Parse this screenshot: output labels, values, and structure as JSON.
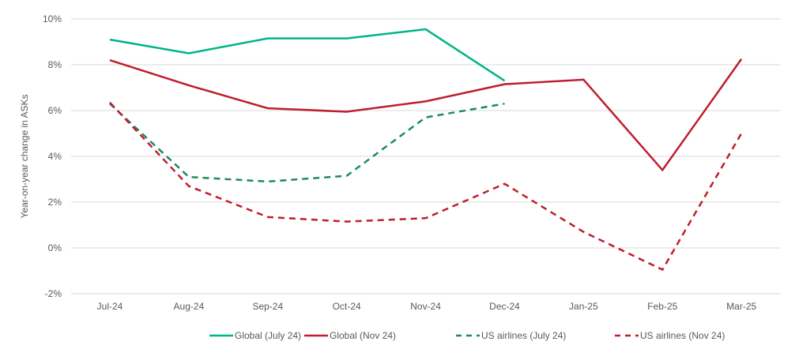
{
  "chart_data": {
    "type": "line",
    "title": "",
    "xlabel": "",
    "ylabel": "Year-on-year change in ASKs",
    "ylim": [
      -2,
      10
    ],
    "yticks": [
      -2,
      0,
      2,
      4,
      6,
      8,
      10
    ],
    "ytick_labels": [
      "-2%",
      "0%",
      "2%",
      "4%",
      "6%",
      "8%",
      "10%"
    ],
    "grid": true,
    "legend_position": "bottom",
    "categories": [
      "Jul-24",
      "Aug-24",
      "Sep-24",
      "Oct-24",
      "Nov-24",
      "Dec-24",
      "Jan-25",
      "Feb-25",
      "Mar-25"
    ],
    "series": [
      {
        "name": "Global (July 24)",
        "color": "#00B388",
        "dashed": false,
        "values": [
          9.1,
          8.5,
          9.15,
          9.15,
          9.55,
          7.3,
          null,
          null,
          null
        ]
      },
      {
        "name": "Global (Nov 24)",
        "color": "#BE1E2D",
        "dashed": false,
        "values": [
          8.2,
          7.1,
          6.1,
          5.95,
          6.4,
          7.15,
          7.35,
          3.4,
          8.25
        ]
      },
      {
        "name": "US airlines (July 24)",
        "color": "#1E8A5E",
        "dashed": true,
        "values": [
          6.3,
          3.1,
          2.9,
          3.15,
          5.7,
          6.3,
          null,
          null,
          null
        ]
      },
      {
        "name": "US airlines (Nov 24)",
        "color": "#BE1E2D",
        "dashed": true,
        "values": [
          6.35,
          2.7,
          1.35,
          1.15,
          1.3,
          2.8,
          0.7,
          -0.95,
          5.0
        ]
      }
    ]
  }
}
